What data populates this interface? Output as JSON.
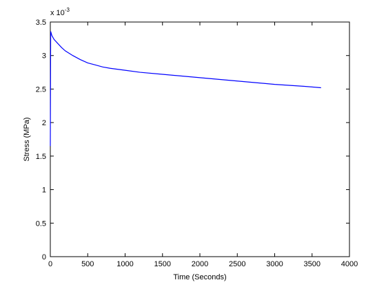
{
  "chart_data": {
    "type": "line",
    "title": "",
    "xlabel": "Time (Seconds)",
    "ylabel": "Stress (MPa)",
    "xlim": [
      0,
      4000
    ],
    "ylim": [
      0,
      3.5
    ],
    "x_ticks": [
      0,
      500,
      1000,
      1500,
      2000,
      2500,
      3000,
      3500,
      4000
    ],
    "x_tick_labels": [
      "0",
      "500",
      "1000",
      "1500",
      "2000",
      "2500",
      "3000",
      "3500",
      "4000"
    ],
    "y_ticks": [
      0,
      0.5,
      1,
      1.5,
      2,
      2.5,
      3,
      3.5
    ],
    "y_tick_labels": [
      "0",
      "0.5",
      "1",
      "1.5",
      "2",
      "2.5",
      "3",
      "3.5"
    ],
    "y_exponent_base": "x 10",
    "y_exponent_power": "-3",
    "grid": false,
    "line_color": "#0000ff",
    "series": [
      {
        "x": [
          0,
          5,
          10,
          20,
          50,
          100,
          150,
          200,
          300,
          400,
          500,
          600,
          700,
          800,
          1000,
          1200,
          1500,
          2000,
          2500,
          3000,
          3400,
          3620
        ],
        "values": [
          1.65,
          3.36,
          3.34,
          3.3,
          3.24,
          3.18,
          3.12,
          3.07,
          3.0,
          2.94,
          2.89,
          2.86,
          2.83,
          2.81,
          2.78,
          2.75,
          2.72,
          2.67,
          2.62,
          2.57,
          2.54,
          2.52
        ]
      }
    ]
  }
}
